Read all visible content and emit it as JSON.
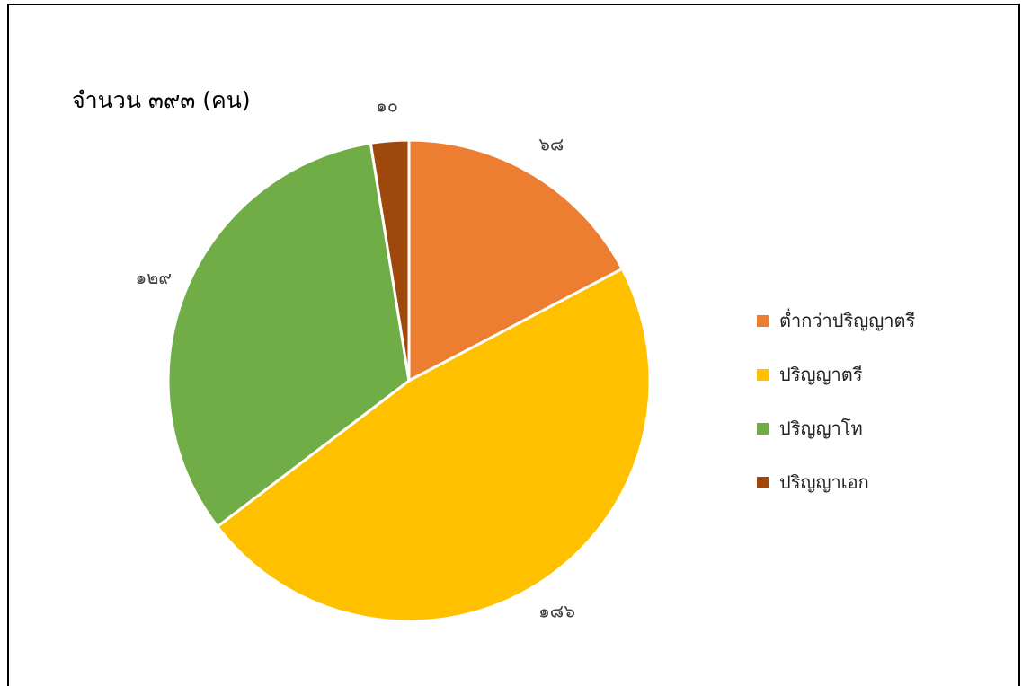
{
  "chart_data": {
    "type": "pie",
    "title": "จำนวน ๓๙๓ (คน)",
    "categories": [
      "ต่ำกว่าปริญญาตรี",
      "ปริญญาตรี",
      "ปริญญาโท",
      "ปริญญาเอก"
    ],
    "values": [
      68,
      186,
      129,
      10
    ],
    "data_labels": [
      "๖๘",
      "๑๘๖",
      "๑๒๙",
      "๑๐"
    ],
    "colors": [
      "#ED7D31",
      "#FFC000",
      "#70AD47",
      "#9E480E"
    ],
    "legend_position": "right"
  }
}
